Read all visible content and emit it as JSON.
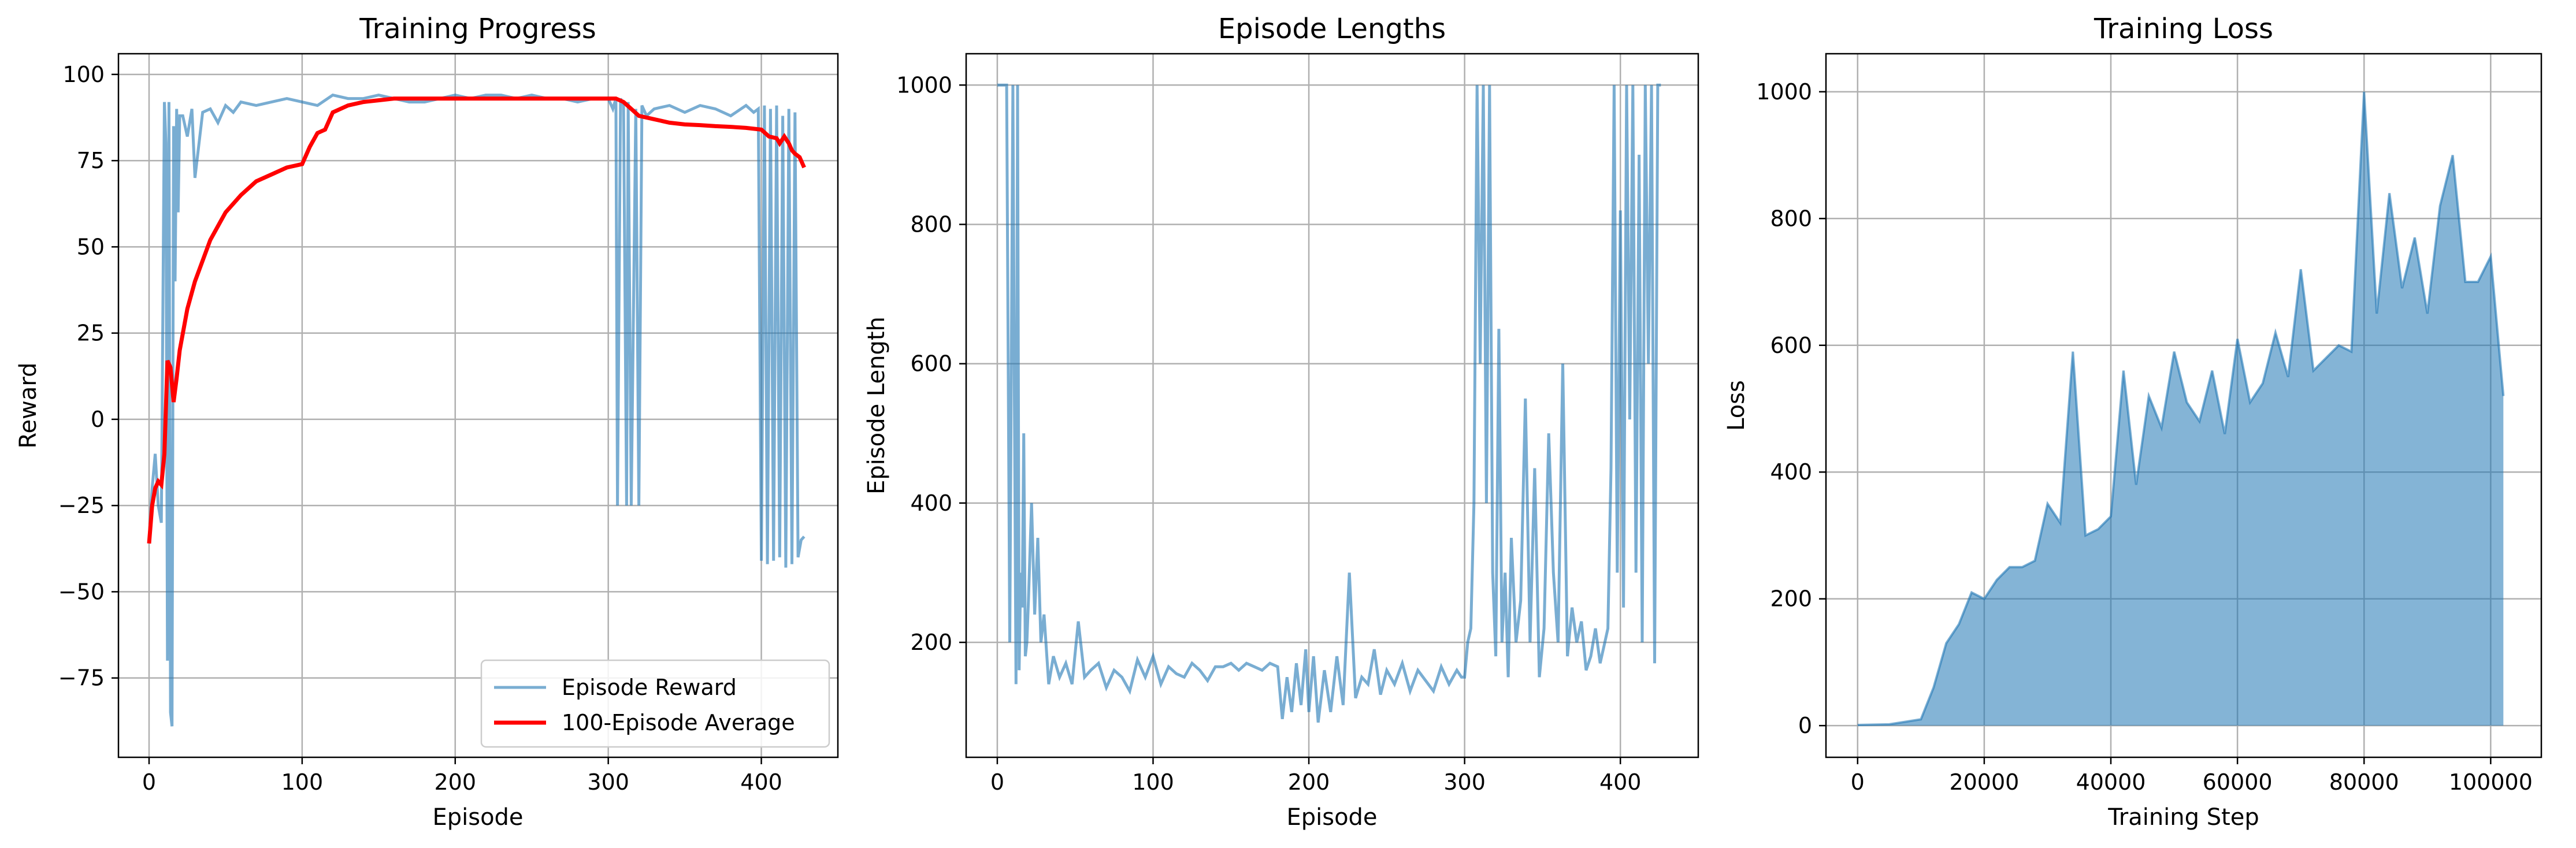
{
  "charts": [
    {
      "type": "line",
      "title": "Training Progress",
      "xlabel": "Episode",
      "ylabel": "Reward",
      "xlim": [
        -20,
        450
      ],
      "ylim": [
        -98,
        106
      ],
      "xticks": [
        0,
        100,
        200,
        300,
        400
      ],
      "xtick_labels": [
        "0",
        "100",
        "200",
        "300",
        "400"
      ],
      "yticks": [
        -75,
        -50,
        -25,
        0,
        25,
        50,
        75,
        100
      ],
      "ytick_labels": [
        "−75",
        "−50",
        "−25",
        "0",
        "25",
        "50",
        "75",
        "100"
      ],
      "grid": true,
      "legend_position": "lower-right",
      "legend": [
        "Episode Reward",
        "100-Episode Average"
      ]
    },
    {
      "type": "line",
      "title": "Episode Lengths",
      "xlabel": "Episode",
      "ylabel": "Episode Length",
      "xlim": [
        -20,
        450
      ],
      "ylim": [
        35,
        1045
      ],
      "xticks": [
        0,
        100,
        200,
        300,
        400
      ],
      "xtick_labels": [
        "0",
        "100",
        "200",
        "300",
        "400"
      ],
      "yticks": [
        200,
        400,
        600,
        800,
        1000
      ],
      "ytick_labels": [
        "200",
        "400",
        "600",
        "800",
        "1000"
      ],
      "grid": true
    },
    {
      "type": "line",
      "title": "Training Loss",
      "xlabel": "Training Step",
      "ylabel": "Loss",
      "xlim": [
        -5000,
        108000
      ],
      "ylim": [
        -50,
        1060
      ],
      "xticks": [
        0,
        20000,
        40000,
        60000,
        80000,
        100000
      ],
      "xtick_labels": [
        "0",
        "20000",
        "40000",
        "60000",
        "80000",
        "100000"
      ],
      "yticks": [
        0,
        200,
        400,
        600,
        800,
        1000
      ],
      "ytick_labels": [
        "0",
        "200",
        "400",
        "600",
        "800",
        "1000"
      ],
      "grid": true
    }
  ],
  "colors": {
    "raw": "#1f77b4",
    "average": "#ff0000",
    "grid": "#b0b0b0"
  },
  "chart_data": [
    {
      "type": "line",
      "title": "Training Progress",
      "series": [
        {
          "name": "Episode Reward",
          "x": [
            0,
            2,
            4,
            6,
            8,
            10,
            11,
            12,
            13,
            14,
            15,
            16,
            17,
            18,
            19,
            20,
            22,
            25,
            28,
            30,
            35,
            40,
            45,
            50,
            55,
            60,
            70,
            80,
            90,
            100,
            110,
            120,
            130,
            140,
            150,
            160,
            170,
            180,
            190,
            200,
            210,
            220,
            230,
            240,
            250,
            260,
            270,
            280,
            290,
            300,
            303,
            305,
            306,
            308,
            310,
            312,
            313,
            315,
            318,
            320,
            322,
            325,
            330,
            340,
            350,
            360,
            370,
            380,
            390,
            395,
            398,
            400,
            402,
            404,
            406,
            408,
            410,
            412,
            414,
            416,
            418,
            420,
            422,
            424,
            426,
            428
          ],
          "y": [
            -35,
            -20,
            -10,
            -25,
            -30,
            92,
            80,
            -70,
            92,
            -85,
            -89,
            85,
            40,
            90,
            60,
            88,
            88,
            82,
            90,
            70,
            89,
            90,
            86,
            91,
            89,
            92,
            91,
            92,
            93,
            92,
            91,
            94,
            93,
            93,
            94,
            93,
            92,
            92,
            93,
            94,
            93,
            94,
            94,
            93,
            94,
            93,
            93,
            92,
            93,
            93,
            90,
            93,
            -25,
            93,
            91,
            -25,
            92,
            -25,
            90,
            -25,
            91,
            88,
            90,
            91,
            89,
            91,
            90,
            88,
            91,
            89,
            90,
            -41,
            91,
            -42,
            90,
            -41,
            91,
            -40,
            88,
            -43,
            90,
            -42,
            89,
            -40,
            -35,
            -34
          ]
        },
        {
          "name": "100-Episode Average",
          "x": [
            0,
            2,
            4,
            6,
            8,
            10,
            12,
            14,
            16,
            18,
            20,
            25,
            30,
            35,
            40,
            50,
            60,
            70,
            80,
            90,
            100,
            105,
            110,
            115,
            120,
            130,
            140,
            150,
            160,
            180,
            200,
            220,
            240,
            260,
            280,
            300,
            305,
            310,
            315,
            320,
            330,
            340,
            350,
            360,
            370,
            380,
            390,
            400,
            405,
            410,
            412,
            415,
            418,
            420,
            422,
            425,
            428
          ],
          "y": [
            -36,
            -25,
            -20,
            -18,
            -19,
            -10,
            17,
            15,
            5,
            12,
            20,
            32,
            40,
            46,
            52,
            60,
            65,
            69,
            71,
            73,
            74,
            79,
            83,
            84,
            89,
            91,
            92,
            92.5,
            93,
            93,
            93,
            93,
            93,
            93,
            93,
            93,
            93,
            92,
            90,
            88,
            87,
            86,
            85.5,
            85.3,
            85,
            84.8,
            84.5,
            84,
            82,
            81.5,
            80,
            82,
            80,
            78,
            77,
            76,
            73
          ]
        }
      ]
    },
    {
      "type": "line",
      "title": "Episode Lengths",
      "series": [
        {
          "name": "Episode Length",
          "x": [
            0,
            2,
            4,
            6,
            8,
            10,
            11,
            12,
            13,
            14,
            15,
            16,
            17,
            18,
            19,
            20,
            22,
            24,
            26,
            28,
            30,
            33,
            36,
            40,
            44,
            48,
            52,
            56,
            60,
            65,
            70,
            75,
            80,
            85,
            90,
            95,
            100,
            105,
            110,
            115,
            120,
            125,
            130,
            135,
            140,
            145,
            150,
            155,
            160,
            165,
            170,
            175,
            180,
            183,
            186,
            189,
            192,
            195,
            198,
            200,
            203,
            206,
            210,
            214,
            218,
            222,
            226,
            230,
            234,
            238,
            242,
            246,
            250,
            255,
            260,
            265,
            270,
            275,
            280,
            285,
            290,
            295,
            298,
            300,
            302,
            304,
            306,
            308,
            310,
            312,
            314,
            316,
            318,
            320,
            322,
            324,
            326,
            328,
            330,
            333,
            336,
            339,
            342,
            345,
            348,
            351,
            354,
            357,
            360,
            363,
            366,
            369,
            372,
            375,
            378,
            381,
            384,
            387,
            390,
            392,
            394,
            396,
            398,
            400,
            402,
            404,
            406,
            408,
            410,
            412,
            414,
            416,
            418,
            420,
            422,
            424,
            426
          ],
          "y": [
            1000,
            1000,
            1000,
            1000,
            200,
            1000,
            540,
            140,
            1000,
            160,
            300,
            250,
            500,
            180,
            200,
            260,
            400,
            240,
            350,
            200,
            240,
            140,
            180,
            150,
            170,
            140,
            230,
            150,
            160,
            170,
            135,
            160,
            150,
            130,
            175,
            150,
            180,
            140,
            165,
            155,
            150,
            170,
            160,
            145,
            165,
            165,
            170,
            160,
            170,
            165,
            160,
            170,
            165,
            90,
            150,
            100,
            170,
            110,
            190,
            100,
            180,
            85,
            160,
            100,
            180,
            110,
            300,
            120,
            150,
            140,
            190,
            125,
            160,
            140,
            170,
            130,
            160,
            145,
            130,
            165,
            140,
            160,
            150,
            150,
            200,
            220,
            400,
            1000,
            600,
            1000,
            400,
            1000,
            300,
            180,
            650,
            200,
            300,
            150,
            350,
            200,
            260,
            550,
            200,
            450,
            150,
            220,
            500,
            300,
            200,
            600,
            180,
            250,
            200,
            230,
            160,
            180,
            220,
            170,
            200,
            220,
            450,
            1000,
            300,
            820,
            250,
            1000,
            520,
            1000,
            300,
            900,
            200,
            1000,
            600,
            1000,
            170,
            1000,
            1000
          ]
        }
      ]
    },
    {
      "type": "line",
      "title": "Training Loss",
      "series": [
        {
          "name": "Loss",
          "x": [
            0,
            5000,
            10000,
            12000,
            14000,
            16000,
            18000,
            20000,
            22000,
            24000,
            26000,
            28000,
            30000,
            32000,
            34000,
            36000,
            38000,
            40000,
            42000,
            44000,
            46000,
            48000,
            50000,
            52000,
            54000,
            56000,
            58000,
            60000,
            62000,
            64000,
            66000,
            68000,
            70000,
            72000,
            74000,
            76000,
            78000,
            80000,
            82000,
            84000,
            86000,
            88000,
            90000,
            92000,
            94000,
            96000,
            98000,
            100000,
            102000
          ],
          "y": [
            1,
            2,
            10,
            60,
            130,
            160,
            210,
            200,
            230,
            250,
            250,
            260,
            350,
            320,
            590,
            300,
            310,
            330,
            560,
            380,
            520,
            470,
            590,
            510,
            480,
            560,
            460,
            610,
            510,
            540,
            620,
            550,
            720,
            560,
            580,
            600,
            590,
            1000,
            650,
            840,
            690,
            770,
            650,
            820,
            900,
            700,
            700,
            740,
            520
          ]
        }
      ]
    }
  ]
}
